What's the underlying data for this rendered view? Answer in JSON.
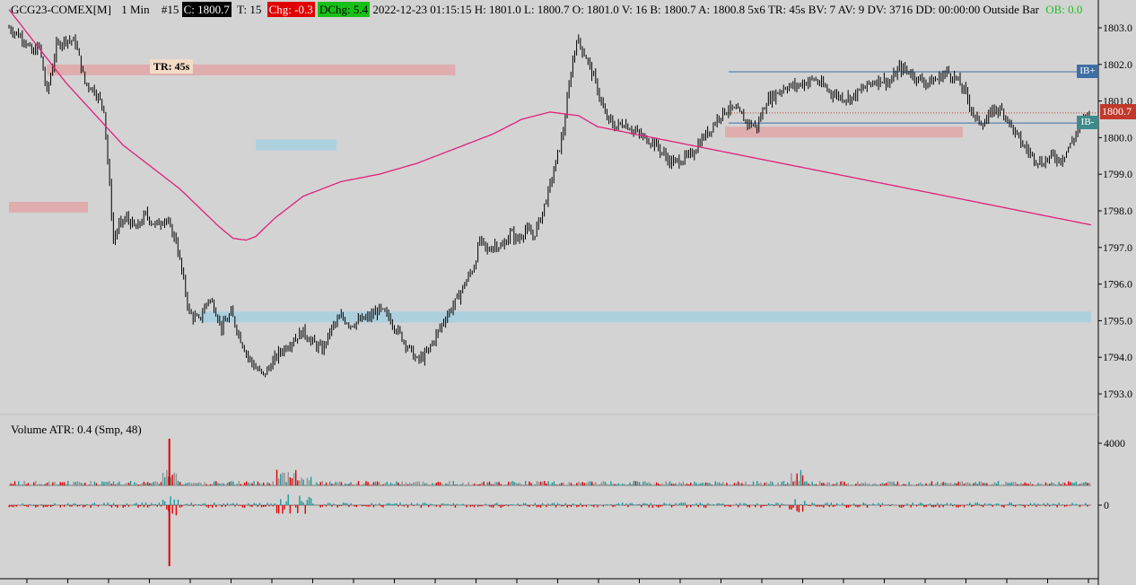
{
  "header": {
    "symbol": "GCG23-COMEX[M]",
    "interval": "1 Min",
    "bar_number": "#15",
    "close": "C: 1800.7",
    "trades": "T: 15",
    "change": "Chg: -0.3",
    "dchange": "DChg: 5.4",
    "details": "2022-12-23 01:15:15 H: 1801.0 L: 1800.7 O: 1801.0 V: 16 B: 1800.7 A: 1800.8 5x6 TR: 45s BV: 7 AV: 9 DV: 3716 DD: 00:00:00 Outside Bar",
    "ob": "OB: 0.0"
  },
  "annotations": {
    "tr_label": "TR: 45s",
    "price_tag": "1800.7",
    "ib_plus": "IB+",
    "ib_minus": "IB-"
  },
  "volume_pane": {
    "label": "Volume  ATR: 0.4   (Smp, 48)",
    "ticks": [
      "4000",
      "0"
    ]
  },
  "colors": {
    "background": "#d3d3d3",
    "candle": "#000000",
    "ma_line": "#e0207a",
    "support_zone": "#a9cfe0",
    "resistance_zone": "#e0a8a8",
    "ib_line": "#3f6ea5",
    "vol_up": "#1a9a9a",
    "vol_down": "#e00000",
    "vol_neutral": "#909090"
  },
  "chart_data": {
    "type": "candlestick",
    "y_ticks": [
      "1803.0",
      "1802.0",
      "1801.0",
      "1800.0",
      "1799.0",
      "1798.0",
      "1797.0",
      "1796.0",
      "1795.0",
      "1794.0",
      "1793.0"
    ],
    "ylim": [
      1792.6,
      1803.3
    ],
    "last_price": 1800.7,
    "bar_count": 300,
    "price_path": [
      [
        0,
        1803.0
      ],
      [
        8,
        1802.7
      ],
      [
        12,
        1802.3
      ],
      [
        16,
        1802.5
      ],
      [
        20,
        1801.2
      ],
      [
        25,
        1802.5
      ],
      [
        30,
        1802.7
      ],
      [
        35,
        1802.6
      ],
      [
        40,
        1801.5
      ],
      [
        45,
        1801.3
      ],
      [
        50,
        1800.8
      ],
      [
        55,
        1797.2
      ],
      [
        58,
        1797.6
      ],
      [
        62,
        1797.8
      ],
      [
        67,
        1797.5
      ],
      [
        72,
        1797.9
      ],
      [
        77,
        1797.6
      ],
      [
        82,
        1797.8
      ],
      [
        88,
        1797.2
      ],
      [
        95,
        1795.2
      ],
      [
        100,
        1795.0
      ],
      [
        105,
        1795.6
      ],
      [
        108,
        1795.4
      ],
      [
        112,
        1794.8
      ],
      [
        117,
        1795.2
      ],
      [
        122,
        1794.5
      ],
      [
        126,
        1794.0
      ],
      [
        130,
        1793.7
      ],
      [
        134,
        1793.5
      ],
      [
        138,
        1793.8
      ],
      [
        142,
        1794.1
      ],
      [
        146,
        1794.3
      ],
      [
        150,
        1794.5
      ],
      [
        155,
        1794.7
      ],
      [
        160,
        1794.4
      ],
      [
        165,
        1794.2
      ],
      [
        170,
        1794.8
      ],
      [
        175,
        1795.1
      ],
      [
        180,
        1794.9
      ],
      [
        185,
        1795.0
      ],
      [
        190,
        1795.1
      ],
      [
        195,
        1795.3
      ],
      [
        200,
        1795.1
      ],
      [
        205,
        1794.7
      ],
      [
        210,
        1794.3
      ],
      [
        215,
        1793.9
      ],
      [
        220,
        1794.1
      ],
      [
        225,
        1794.6
      ],
      [
        230,
        1795.1
      ],
      [
        235,
        1795.5
      ],
      [
        240,
        1796.0
      ],
      [
        245,
        1796.5
      ],
      [
        248,
        1797.2
      ],
      [
        252,
        1796.9
      ],
      [
        256,
        1797.1
      ],
      [
        260,
        1797.0
      ],
      [
        264,
        1797.4
      ],
      [
        268,
        1797.2
      ],
      [
        272,
        1797.5
      ],
      [
        276,
        1797.3
      ],
      [
        280,
        1797.8
      ],
      [
        284,
        1798.5
      ],
      [
        288,
        1799.3
      ],
      [
        292,
        1800.2
      ],
      [
        296,
        1801.8
      ],
      [
        299,
        1802.7
      ]
    ],
    "price_path_2": [
      [
        0,
        1802.7
      ],
      [
        5,
        1802.2
      ],
      [
        10,
        1801.5
      ],
      [
        15,
        1800.6
      ],
      [
        20,
        1800.3
      ],
      [
        25,
        1800.4
      ],
      [
        30,
        1800.2
      ],
      [
        35,
        1800.0
      ],
      [
        40,
        1799.9
      ],
      [
        45,
        1799.6
      ],
      [
        50,
        1799.3
      ],
      [
        55,
        1799.4
      ],
      [
        60,
        1799.5
      ],
      [
        65,
        1799.9
      ],
      [
        70,
        1800.2
      ],
      [
        75,
        1800.6
      ],
      [
        80,
        1800.8
      ],
      [
        85,
        1800.7
      ],
      [
        90,
        1800.4
      ],
      [
        95,
        1800.3
      ],
      [
        100,
        1801.0
      ],
      [
        105,
        1801.2
      ],
      [
        110,
        1801.4
      ],
      [
        115,
        1801.4
      ],
      [
        120,
        1801.5
      ],
      [
        125,
        1801.6
      ],
      [
        130,
        1801.4
      ],
      [
        135,
        1801.2
      ],
      [
        140,
        1801.1
      ],
      [
        145,
        1801.1
      ],
      [
        150,
        1801.3
      ],
      [
        155,
        1801.5
      ],
      [
        160,
        1801.6
      ],
      [
        165,
        1801.5
      ],
      [
        170,
        1801.9
      ],
      [
        175,
        1801.8
      ],
      [
        180,
        1801.6
      ],
      [
        185,
        1801.5
      ],
      [
        190,
        1801.6
      ],
      [
        195,
        1801.8
      ],
      [
        200,
        1801.6
      ],
      [
        205,
        1801.2
      ],
      [
        210,
        1800.5
      ],
      [
        215,
        1800.4
      ],
      [
        220,
        1800.8
      ],
      [
        225,
        1800.7
      ],
      [
        230,
        1800.2
      ],
      [
        235,
        1799.8
      ],
      [
        240,
        1799.5
      ],
      [
        245,
        1799.3
      ],
      [
        250,
        1799.5
      ],
      [
        255,
        1799.4
      ],
      [
        260,
        1799.8
      ],
      [
        265,
        1800.3
      ],
      [
        270,
        1800.7
      ]
    ],
    "ma_path": [
      [
        0,
        1803.5
      ],
      [
        30,
        1801.5
      ],
      [
        60,
        1799.8
      ],
      [
        90,
        1798.6
      ],
      [
        110,
        1797.6
      ],
      [
        118,
        1797.25
      ],
      [
        125,
        1797.2
      ],
      [
        130,
        1797.3
      ],
      [
        140,
        1797.8
      ],
      [
        155,
        1798.4
      ],
      [
        175,
        1798.8
      ],
      [
        195,
        1799.0
      ],
      [
        215,
        1799.3
      ],
      [
        235,
        1799.7
      ],
      [
        255,
        1800.1
      ],
      [
        270,
        1800.5
      ],
      [
        285,
        1800.7
      ],
      [
        300,
        1800.6
      ],
      [
        310,
        1800.3
      ]
    ],
    "zones": [
      {
        "kind": "support",
        "from_bar": 100,
        "price": 1795.1
      },
      {
        "kind": "support",
        "from_bar": 130,
        "price": 1799.8
      },
      {
        "kind": "resistance",
        "from_bar": 0,
        "price": 1798.1
      },
      {
        "kind": "resistance",
        "from_bar": 20,
        "price": 1801.85
      },
      {
        "kind": "resistance",
        "from_bar": 200,
        "price": 1800.15
      }
    ],
    "ib_plus_price": 1801.8,
    "ib_minus_price": 1800.4,
    "volume_ticks": [
      4000,
      0
    ]
  }
}
